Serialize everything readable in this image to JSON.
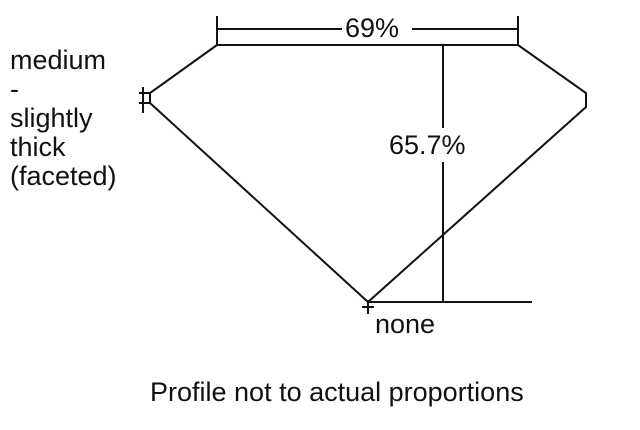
{
  "diagram": {
    "table_percent": "69%",
    "depth_percent": "65.7%",
    "girdle_label": [
      "medium",
      "-",
      "slightly",
      "thick",
      "(faceted)"
    ],
    "culet_label": "none",
    "caption": "Profile not to actual proportions",
    "line_color": "#111111"
  }
}
